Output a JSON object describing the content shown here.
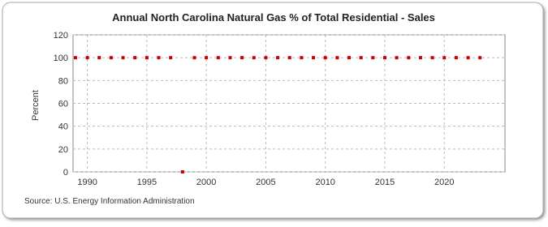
{
  "chart_data": {
    "type": "scatter",
    "title": "Annual North Carolina Natural Gas % of Total Residential - Sales",
    "y_label": "Percent",
    "source": "Source: U.S. Energy Information Administration",
    "color": "#cc0000",
    "grid": true,
    "x": [
      1989,
      1990,
      1991,
      1992,
      1993,
      1994,
      1995,
      1996,
      1997,
      1998,
      1999,
      2000,
      2001,
      2002,
      2003,
      2004,
      2005,
      2006,
      2007,
      2008,
      2009,
      2010,
      2011,
      2012,
      2013,
      2014,
      2015,
      2016,
      2017,
      2018,
      2019,
      2020,
      2021,
      2022,
      2023
    ],
    "values": [
      100,
      100,
      100,
      100,
      100,
      100,
      100,
      100,
      100,
      0,
      100,
      100,
      100,
      100,
      100,
      100,
      100,
      100,
      100,
      100,
      100,
      100,
      100,
      100,
      100,
      100,
      100,
      100,
      100,
      100,
      100,
      100,
      100,
      100,
      100
    ],
    "xlim": [
      1988.8,
      2025.1
    ],
    "xticks": [
      1990,
      1995,
      2000,
      2005,
      2010,
      2015,
      2020
    ],
    "ylim": [
      0,
      120
    ],
    "yticks": [
      0,
      20,
      40,
      60,
      80,
      100,
      120
    ]
  }
}
